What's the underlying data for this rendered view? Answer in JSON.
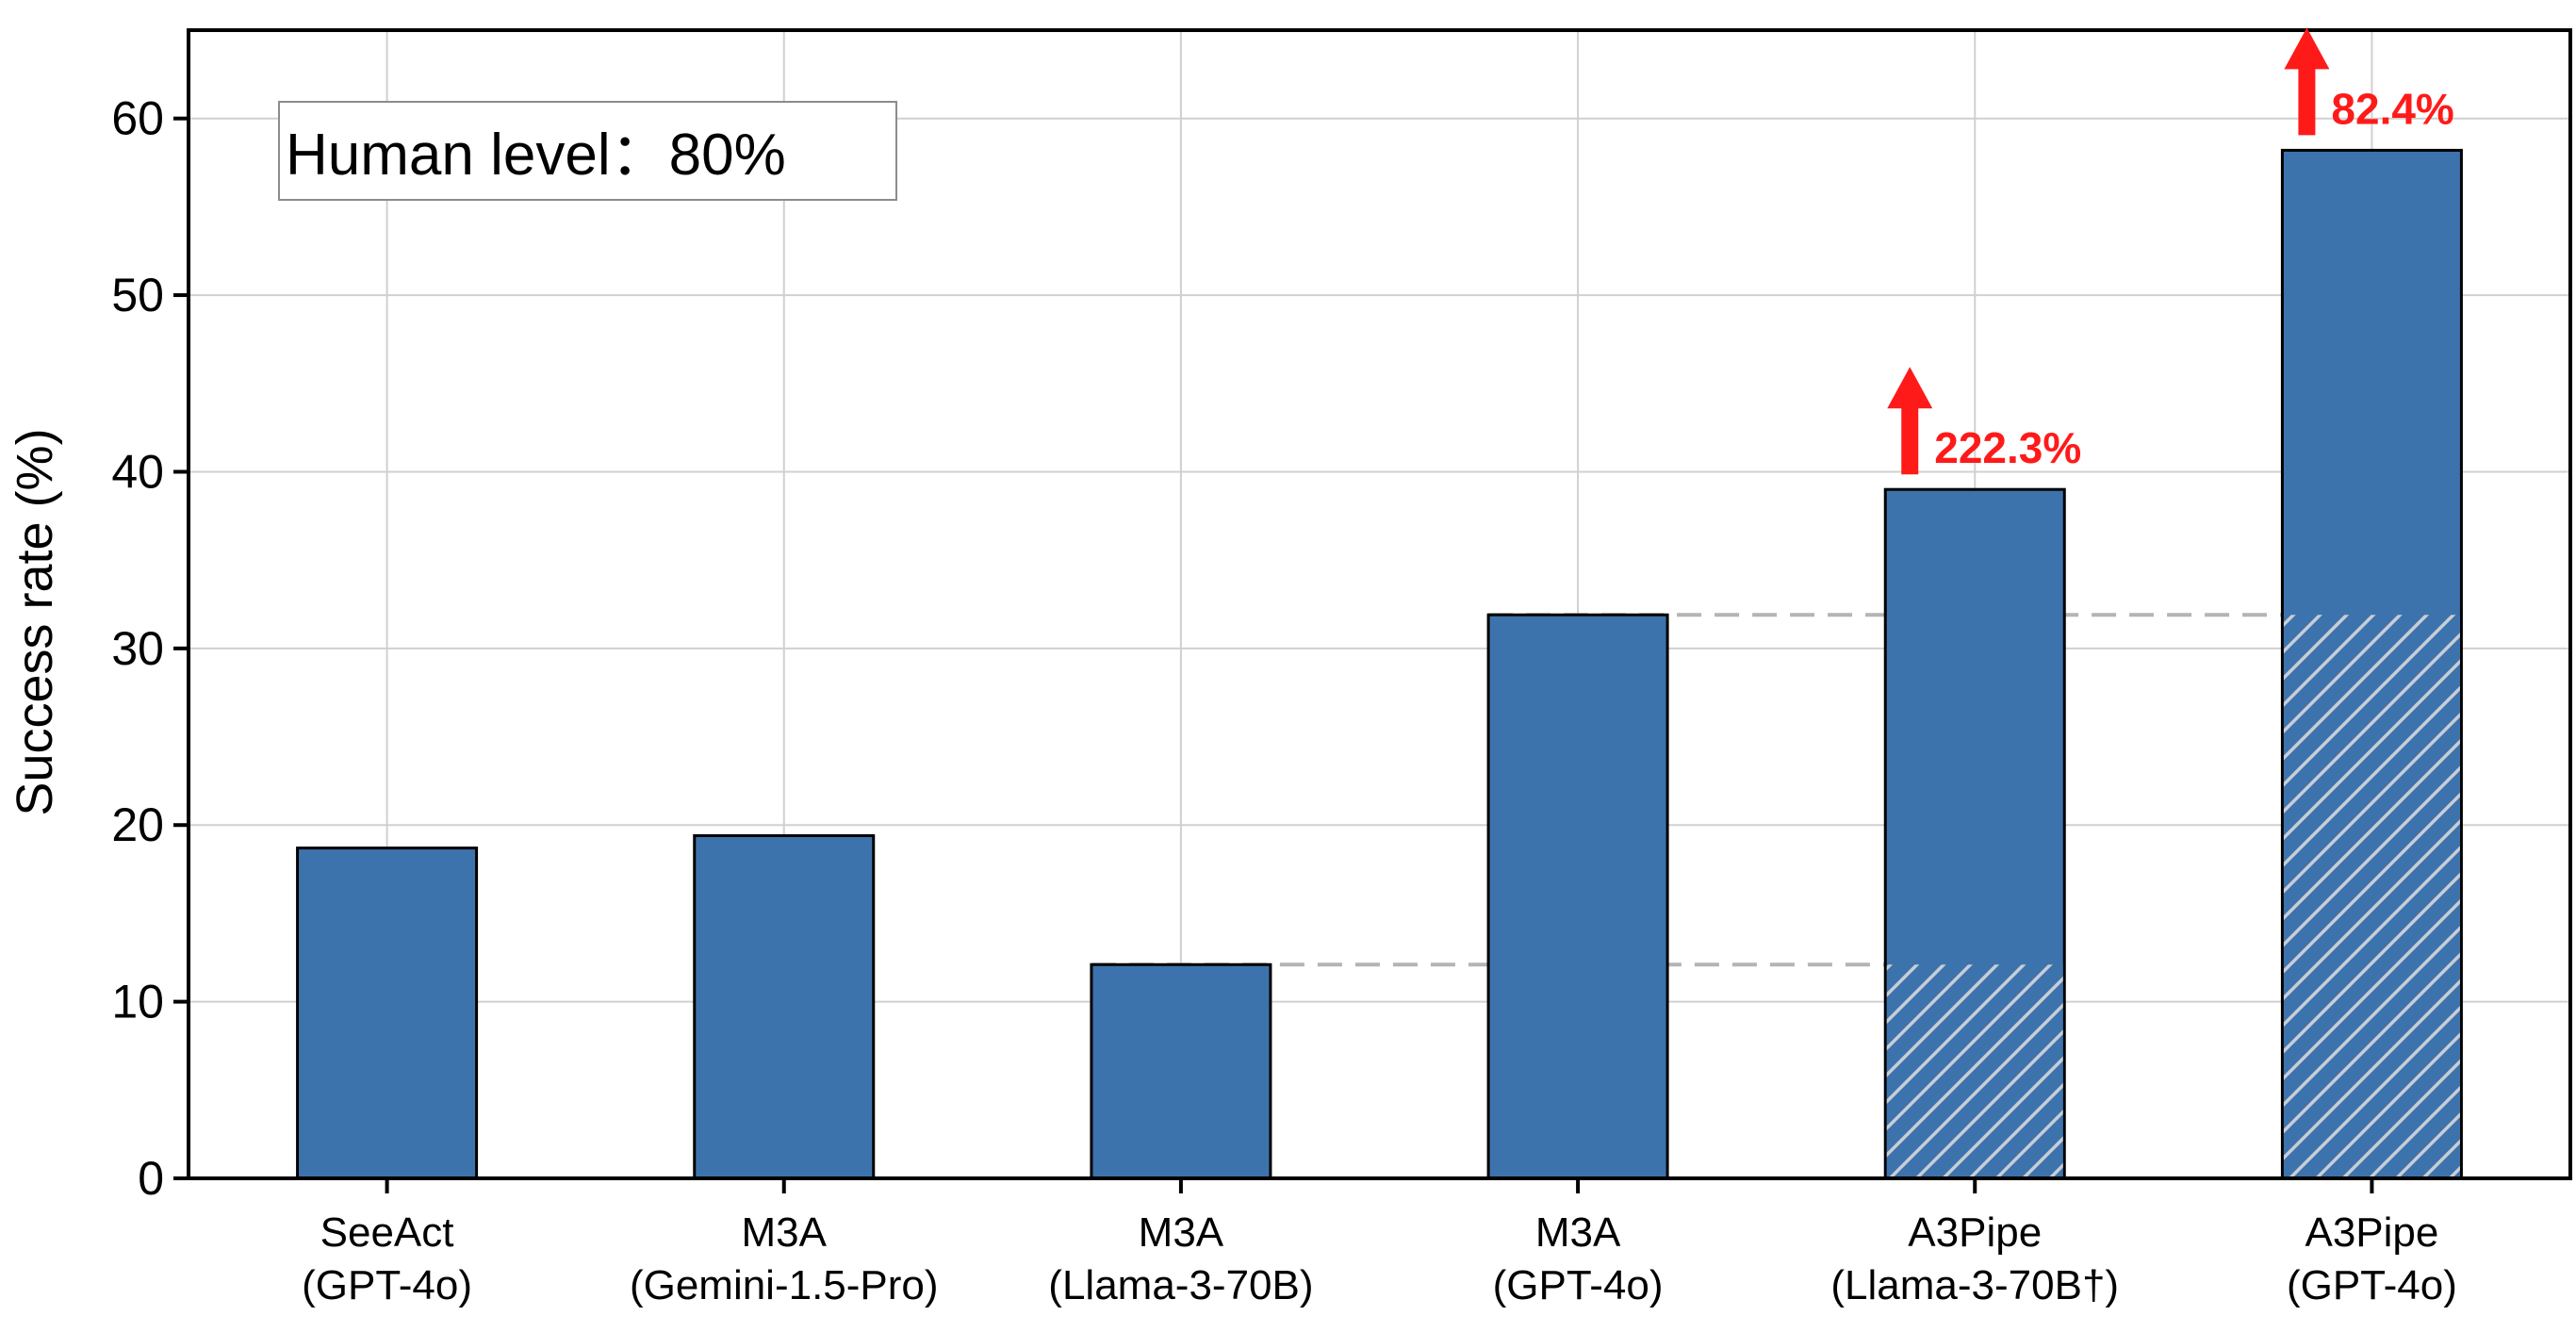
{
  "chart_data": {
    "type": "bar",
    "categories": [
      [
        "SeeAct",
        "(GPT-4o)"
      ],
      [
        "M3A",
        "(Gemini-1.5-Pro)"
      ],
      [
        "M3A",
        "(Llama-3-70B)"
      ],
      [
        "M3A",
        "(GPT-4o)"
      ],
      [
        "A3Pipe",
        "(Llama-3-70B†)"
      ],
      [
        "A3Pipe",
        "(GPT-4o)"
      ]
    ],
    "values": [
      18.7,
      19.4,
      12.1,
      31.9,
      39.0,
      58.2
    ],
    "baseline_hatched": [
      null,
      null,
      null,
      null,
      12.1,
      31.9
    ],
    "baseline_lines": [
      {
        "value": 12.1,
        "from_index": 2,
        "to_index": 4
      },
      {
        "value": 31.9,
        "from_index": 3,
        "to_index": 5
      }
    ],
    "gains": [
      {
        "index": 4,
        "label": "222.3%"
      },
      {
        "index": 5,
        "label": "82.4%"
      }
    ],
    "ylabel": "Success rate (%)",
    "xlabel": "",
    "ylim": [
      0,
      65
    ],
    "yticks": [
      0,
      10,
      20,
      30,
      40,
      50,
      60
    ],
    "grid": true,
    "annotation_box": "Human level：80%",
    "colors": {
      "bar": "#3d73ac",
      "bar_edge": "#000000",
      "hatch": "#c8cdd6",
      "grid": "#d0d0d0",
      "baseline_line": "#b4b4b4",
      "gain": "#ff1a1a"
    }
  }
}
